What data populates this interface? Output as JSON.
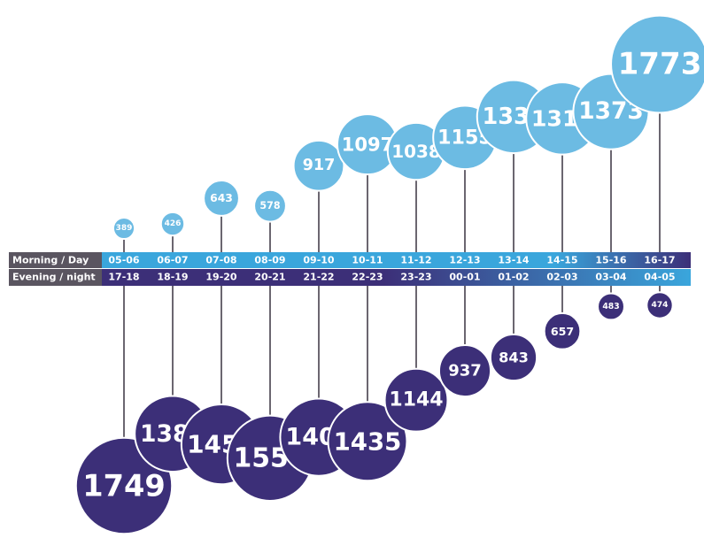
{
  "chart_data": {
    "type": "bubble",
    "series": [
      {
        "name": "Morning / Day",
        "color": "#6cbbe3",
        "categories": [
          "05-06",
          "06-07",
          "07-08",
          "08-09",
          "09-10",
          "10-11",
          "11-12",
          "12-13",
          "13-14",
          "14-15",
          "15-16",
          "16-17"
        ],
        "values": [
          389,
          426,
          643,
          578,
          917,
          1097,
          1038,
          1155,
          1330,
          1315,
          1373,
          1773
        ]
      },
      {
        "name": "Evening / night",
        "color": "#3c2f78",
        "categories": [
          "17-18",
          "18-19",
          "19-20",
          "20-21",
          "21-22",
          "22-23",
          "23-23",
          "00-01",
          "01-02",
          "02-03",
          "03-04",
          "04-05"
        ],
        "values": [
          1749,
          1382,
          1456,
          1554,
          1406,
          1435,
          1144,
          937,
          843,
          657,
          483,
          474
        ]
      }
    ]
  }
}
